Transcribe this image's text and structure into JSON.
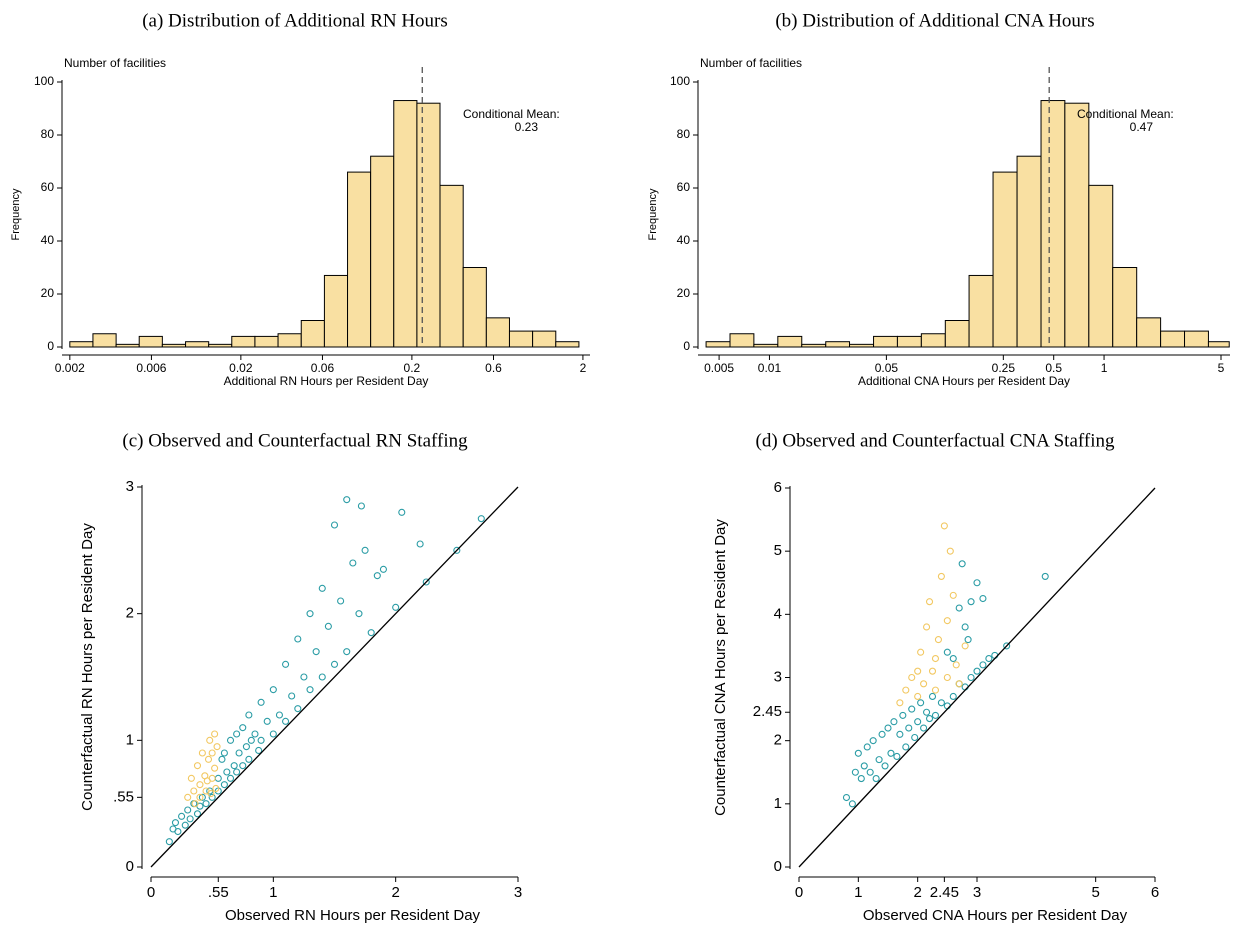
{
  "chart_data": [
    {
      "type": "histogram",
      "title": "(a) Distribution of Additional RN Hours",
      "y_note": "Number of facilities",
      "y_label": "Frequency",
      "x_label": "Additional RN Hours per Resident Day",
      "log_x": true,
      "color": "#f9e0a2",
      "bins": [
        0.002,
        0.00273,
        0.00373,
        0.00509,
        0.00695,
        0.0095,
        0.01297,
        0.0177,
        0.02417,
        0.033,
        0.0451,
        0.0616,
        0.0841,
        0.1148,
        0.1567,
        0.214,
        0.292,
        0.399,
        0.545,
        0.744,
        1.016,
        1.388,
        1.895
      ],
      "counts": [
        2,
        5,
        1,
        4,
        1,
        2,
        1,
        4,
        4,
        5,
        10,
        27,
        66,
        72,
        93,
        92,
        61,
        30,
        11,
        6,
        6,
        2
      ],
      "xlim": [
        0.0018,
        2.2
      ],
      "xticks": [
        0.002,
        0.006,
        0.02,
        0.06,
        0.2,
        0.6,
        2
      ],
      "ylim": [
        0,
        100
      ],
      "yticks": [
        0,
        20,
        40,
        60,
        80,
        100
      ],
      "annotation": "Conditional Mean:",
      "mean": 0.23
    },
    {
      "type": "histogram",
      "title": "(b) Distribution of Additional CNA Hours",
      "y_note": "Number of facilities",
      "y_label": "Frequency",
      "x_label": "Additional CNA Hours per Resident Day",
      "log_x": true,
      "color": "#f9e0a2",
      "bins": [
        0.00418,
        0.00581,
        0.00807,
        0.01122,
        0.0156,
        0.0217,
        0.0301,
        0.0419,
        0.0582,
        0.0809,
        0.1125,
        0.156,
        0.217,
        0.302,
        0.42,
        0.583,
        0.811,
        1.127,
        1.567,
        2.178,
        3.027,
        4.207,
        5.6
      ],
      "counts": [
        2,
        5,
        1,
        4,
        1,
        2,
        1,
        4,
        4,
        5,
        10,
        27,
        66,
        72,
        93,
        92,
        61,
        30,
        11,
        6,
        6,
        2
      ],
      "xlim": [
        0.00374,
        5.66
      ],
      "xticks": [
        0.005,
        0.01,
        0.05,
        0.25,
        0.5,
        1,
        5
      ],
      "ylim": [
        0,
        100
      ],
      "yticks": [
        0,
        20,
        40,
        60,
        80,
        100
      ],
      "annotation": "Conditional Mean:",
      "mean": 0.47
    },
    {
      "type": "scatter",
      "title": "(c) Observed and Counterfactual RN Staffing",
      "x_label": "Observed RN Hours per Resident Day",
      "y_label": "Counterfactual RN Hours per Resident Day",
      "diagonal": true,
      "xlim": [
        0,
        3
      ],
      "xticks": [
        0,
        {
          "value": 0.55,
          "label": ".55"
        },
        1,
        2,
        3
      ],
      "ylim": [
        0,
        3
      ],
      "yticks": [
        0,
        {
          "value": 0.55,
          "label": ".55"
        },
        1,
        2,
        3
      ],
      "series": [
        {
          "color": "#2a9ca5",
          "x": [
            0.15,
            0.18,
            0.2,
            0.22,
            0.25,
            0.28,
            0.3,
            0.32,
            0.35,
            0.38,
            0.4,
            0.42,
            0.45,
            0.48,
            0.5,
            0.55,
            0.55,
            0.58,
            0.6,
            0.6,
            0.62,
            0.65,
            0.65,
            0.68,
            0.7,
            0.7,
            0.72,
            0.75,
            0.75,
            0.78,
            0.8,
            0.8,
            0.82,
            0.85,
            0.88,
            0.9,
            0.9,
            0.95,
            1.0,
            1.0,
            1.05,
            1.1,
            1.1,
            1.15,
            1.2,
            1.2,
            1.25,
            1.3,
            1.3,
            1.35,
            1.4,
            1.4,
            1.45,
            1.5,
            1.5,
            1.55,
            1.6,
            1.6,
            1.65,
            1.7,
            1.72,
            1.75,
            1.8,
            1.85,
            1.9,
            2.0,
            2.05,
            2.2,
            2.25,
            2.5,
            2.7
          ],
          "values": [
            0.2,
            0.3,
            0.35,
            0.28,
            0.4,
            0.33,
            0.45,
            0.38,
            0.5,
            0.42,
            0.48,
            0.55,
            0.5,
            0.6,
            0.55,
            0.7,
            0.6,
            0.85,
            0.65,
            0.9,
            0.75,
            1.0,
            0.7,
            0.8,
            1.05,
            0.75,
            0.9,
            1.1,
            0.8,
            0.95,
            1.2,
            0.85,
            1.0,
            1.05,
            0.92,
            1.3,
            1.0,
            1.15,
            1.05,
            1.4,
            1.2,
            1.6,
            1.15,
            1.35,
            1.25,
            1.8,
            1.5,
            2.0,
            1.4,
            1.7,
            2.2,
            1.5,
            1.9,
            1.6,
            2.7,
            2.1,
            1.7,
            2.9,
            2.4,
            2.0,
            2.85,
            2.5,
            1.85,
            2.3,
            2.35,
            2.05,
            2.8,
            2.55,
            2.25,
            2.5,
            2.75
          ]
        },
        {
          "color": "#f2c862",
          "x": [
            0.3,
            0.33,
            0.35,
            0.38,
            0.4,
            0.42,
            0.44,
            0.45,
            0.47,
            0.48,
            0.5,
            0.5,
            0.52,
            0.52,
            0.53,
            0.54,
            0.4,
            0.36,
            0.46,
            0.49
          ],
          "values": [
            0.55,
            0.7,
            0.6,
            0.8,
            0.65,
            0.9,
            0.72,
            0.6,
            0.85,
            1.0,
            0.7,
            0.9,
            0.78,
            1.05,
            0.62,
            0.95,
            0.55,
            0.5,
            0.68,
            0.58
          ]
        }
      ]
    },
    {
      "type": "scatter",
      "title": "(d) Observed and Counterfactual CNA Staffing",
      "x_label": "Observed CNA Hours per Resident Day",
      "y_label": "Counterfactual CNA Hours per Resident Day",
      "diagonal": true,
      "xlim": [
        0,
        6
      ],
      "xticks": [
        0,
        1,
        2,
        2.45,
        3,
        5,
        6
      ],
      "ylim": [
        0,
        6
      ],
      "yticks": [
        0,
        1,
        2,
        2.45,
        3,
        4,
        5,
        6
      ],
      "series": [
        {
          "color": "#2a9ca5",
          "x": [
            0.8,
            0.9,
            0.95,
            1.0,
            1.05,
            1.1,
            1.15,
            1.2,
            1.25,
            1.3,
            1.35,
            1.4,
            1.45,
            1.5,
            1.55,
            1.6,
            1.65,
            1.7,
            1.75,
            1.8,
            1.85,
            1.9,
            1.95,
            2.0,
            2.05,
            2.1,
            2.15,
            2.2,
            2.25,
            2.3,
            2.4,
            2.5,
            2.5,
            2.6,
            2.7,
            2.7,
            2.8,
            2.8,
            2.9,
            2.9,
            3.0,
            3.0,
            3.1,
            3.1,
            3.2,
            3.3,
            3.5,
            4.15,
            2.6,
            2.75,
            2.85
          ],
          "values": [
            1.1,
            1.0,
            1.5,
            1.8,
            1.4,
            1.6,
            1.9,
            1.5,
            2.0,
            1.4,
            1.7,
            2.1,
            1.6,
            2.2,
            1.8,
            2.3,
            1.75,
            2.1,
            2.4,
            1.9,
            2.2,
            2.5,
            2.05,
            2.3,
            2.6,
            2.2,
            2.45,
            2.35,
            2.7,
            2.4,
            2.6,
            2.55,
            3.4,
            2.7,
            2.9,
            4.1,
            2.85,
            3.8,
            3.0,
            4.2,
            3.1,
            4.5,
            3.2,
            4.25,
            3.3,
            3.35,
            3.5,
            4.6,
            3.3,
            4.8,
            3.6
          ]
        },
        {
          "color": "#f2c862",
          "x": [
            1.7,
            1.8,
            1.9,
            2.0,
            2.05,
            2.1,
            2.15,
            2.2,
            2.25,
            2.3,
            2.35,
            2.4,
            2.45,
            2.5,
            2.55,
            2.6,
            2.65,
            2.7,
            2.3,
            2.5,
            2.8,
            2.0
          ],
          "values": [
            2.6,
            2.8,
            3.0,
            2.7,
            3.4,
            2.9,
            3.8,
            4.2,
            3.1,
            2.8,
            3.6,
            4.6,
            5.4,
            3.0,
            5.0,
            4.3,
            3.2,
            2.9,
            3.3,
            3.9,
            3.5,
            3.1
          ]
        }
      ]
    }
  ]
}
